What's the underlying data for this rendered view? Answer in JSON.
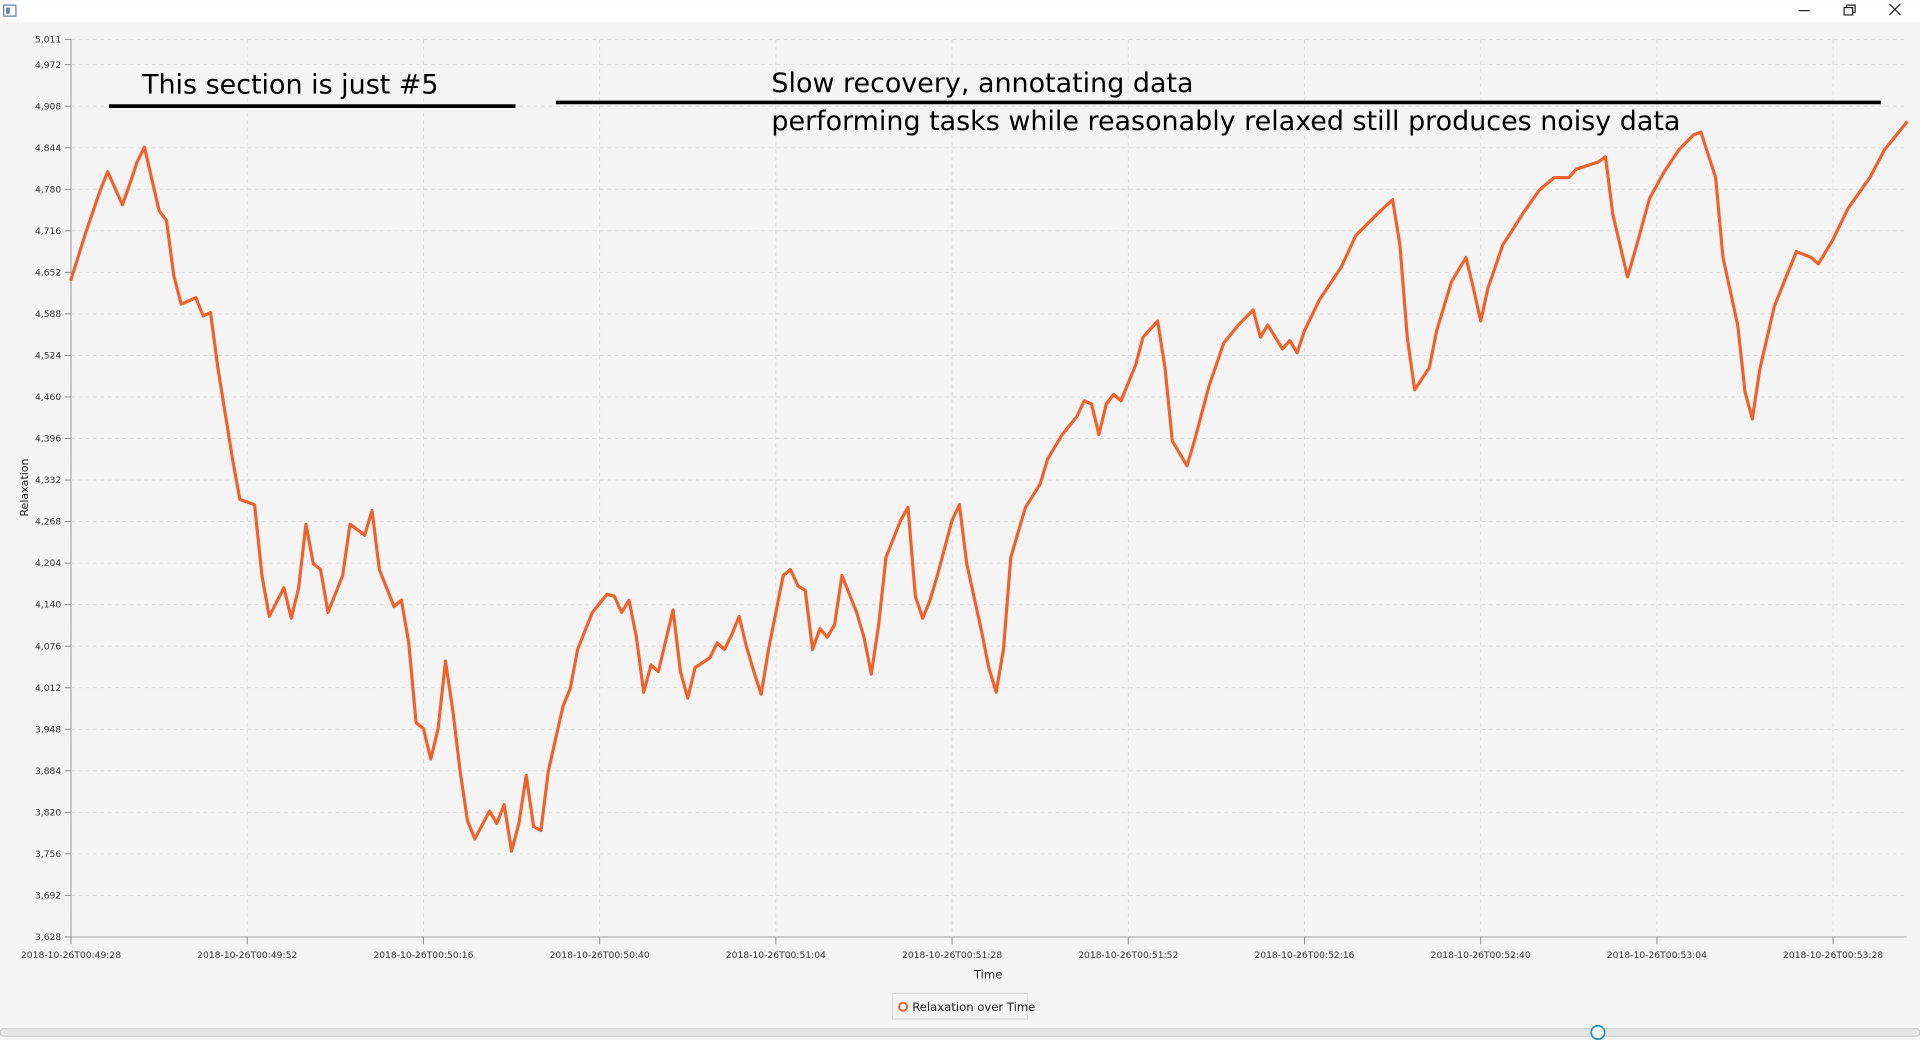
{
  "chart_data": {
    "type": "line",
    "x_label": "Time",
    "y_label": "Relaxation",
    "annotations": [
      "This section is just #5",
      "Slow recovery, annotating data",
      "performing tasks while reasonably relaxed still produces noisy data"
    ],
    "grid": true,
    "xlim": [
      "2018-10-26T00:49:28",
      "2018-10-26T00:53:38"
    ],
    "xticks": [
      "2018-10-26T00:49:28",
      "2018-10-26T00:49:52",
      "2018-10-26T00:50:16",
      "2018-10-26T00:50:40",
      "2018-10-26T00:51:04",
      "2018-10-26T00:51:28",
      "2018-10-26T00:51:52",
      "2018-10-26T00:52:16",
      "2018-10-26T00:52:40",
      "2018-10-26T00:53:04",
      "2018-10-26T00:53:28"
    ],
    "ylim": [
      3628,
      5011
    ],
    "yticks": [
      {
        "value": 3628,
        "label": "3,628"
      },
      {
        "value": 3692,
        "label": "3,692"
      },
      {
        "value": 3756,
        "label": "3,756"
      },
      {
        "value": 3820,
        "label": "3,820"
      },
      {
        "value": 3884,
        "label": "3,884"
      },
      {
        "value": 3948,
        "label": "3,948"
      },
      {
        "value": 4012,
        "label": "4,012"
      },
      {
        "value": 4076,
        "label": "4,076"
      },
      {
        "value": 4140,
        "label": "4,140"
      },
      {
        "value": 4204,
        "label": "4,204"
      },
      {
        "value": 4268,
        "label": "4,268"
      },
      {
        "value": 4332,
        "label": "4,332"
      },
      {
        "value": 4396,
        "label": "4,396"
      },
      {
        "value": 4460,
        "label": "4,460"
      },
      {
        "value": 4524,
        "label": "4,524"
      },
      {
        "value": 4588,
        "label": "4,588"
      },
      {
        "value": 4652,
        "label": "4,652"
      },
      {
        "value": 4716,
        "label": "4,716"
      },
      {
        "value": 4780,
        "label": "4,780"
      },
      {
        "value": 4844,
        "label": "4,844"
      },
      {
        "value": 4908,
        "label": "4,908"
      },
      {
        "value": 4972,
        "label": "4,972"
      },
      {
        "value": 5011,
        "label": "5,011"
      }
    ],
    "x": [
      "2018-10-26T00:49:28",
      "2018-10-26T00:49:30",
      "2018-10-26T00:49:32",
      "2018-10-26T00:49:33",
      "2018-10-26T00:49:35",
      "2018-10-26T00:49:36",
      "2018-10-26T00:49:37",
      "2018-10-26T00:49:38",
      "2018-10-26T00:49:40",
      "2018-10-26T00:49:41",
      "2018-10-26T00:49:42",
      "2018-10-26T00:49:43",
      "2018-10-26T00:49:45",
      "2018-10-26T00:49:46",
      "2018-10-26T00:49:47",
      "2018-10-26T00:49:48",
      "2018-10-26T00:49:50",
      "2018-10-26T00:49:51",
      "2018-10-26T00:49:53",
      "2018-10-26T00:49:54",
      "2018-10-26T00:49:55",
      "2018-10-26T00:49:57",
      "2018-10-26T00:49:58",
      "2018-10-26T00:49:59",
      "2018-10-26T00:50:00",
      "2018-10-26T00:50:01",
      "2018-10-26T00:50:02",
      "2018-10-26T00:50:03",
      "2018-10-26T00:50:05",
      "2018-10-26T00:50:06",
      "2018-10-26T00:50:08",
      "2018-10-26T00:50:09",
      "2018-10-26T00:50:10",
      "2018-10-26T00:50:12",
      "2018-10-26T00:50:13",
      "2018-10-26T00:50:14",
      "2018-10-26T00:50:15",
      "2018-10-26T00:50:16",
      "2018-10-26T00:50:17",
      "2018-10-26T00:50:18",
      "2018-10-26T00:50:19",
      "2018-10-26T00:50:20",
      "2018-10-26T00:50:21",
      "2018-10-26T00:50:22",
      "2018-10-26T00:50:23",
      "2018-10-26T00:50:25",
      "2018-10-26T00:50:26",
      "2018-10-26T00:50:27",
      "2018-10-26T00:50:28",
      "2018-10-26T00:50:29",
      "2018-10-26T00:50:30",
      "2018-10-26T00:50:31",
      "2018-10-26T00:50:32",
      "2018-10-26T00:50:33",
      "2018-10-26T00:50:35",
      "2018-10-26T00:50:36",
      "2018-10-26T00:50:37",
      "2018-10-26T00:50:39",
      "2018-10-26T00:50:41",
      "2018-10-26T00:50:42",
      "2018-10-26T00:50:43",
      "2018-10-26T00:50:44",
      "2018-10-26T00:50:45",
      "2018-10-26T00:50:46",
      "2018-10-26T00:50:47",
      "2018-10-26T00:50:48",
      "2018-10-26T00:50:50",
      "2018-10-26T00:50:51",
      "2018-10-26T00:50:52",
      "2018-10-26T00:50:53",
      "2018-10-26T00:50:55",
      "2018-10-26T00:50:56",
      "2018-10-26T00:50:57",
      "2018-10-26T00:50:58",
      "2018-10-26T00:50:59",
      "2018-10-26T00:51:00",
      "2018-10-26T00:51:01",
      "2018-10-26T00:51:02",
      "2018-10-26T00:51:03",
      "2018-10-26T00:51:05",
      "2018-10-26T00:51:06",
      "2018-10-26T00:51:07",
      "2018-10-26T00:51:08",
      "2018-10-26T00:51:09",
      "2018-10-26T00:51:10",
      "2018-10-26T00:51:11",
      "2018-10-26T00:51:12",
      "2018-10-26T00:51:13",
      "2018-10-26T00:51:15",
      "2018-10-26T00:51:16",
      "2018-10-26T00:51:17",
      "2018-10-26T00:51:18",
      "2018-10-26T00:51:19",
      "2018-10-26T00:51:21",
      "2018-10-26T00:51:22",
      "2018-10-26T00:51:23",
      "2018-10-26T00:51:24",
      "2018-10-26T00:51:25",
      "2018-10-26T00:51:26",
      "2018-10-26T00:51:28",
      "2018-10-26T00:51:29",
      "2018-10-26T00:51:30",
      "2018-10-26T00:51:32",
      "2018-10-26T00:51:33",
      "2018-10-26T00:51:34",
      "2018-10-26T00:51:35",
      "2018-10-26T00:51:36",
      "2018-10-26T00:51:38",
      "2018-10-26T00:51:40",
      "2018-10-26T00:51:41",
      "2018-10-26T00:51:43",
      "2018-10-26T00:51:45",
      "2018-10-26T00:51:46",
      "2018-10-26T00:51:47",
      "2018-10-26T00:51:48",
      "2018-10-26T00:51:49",
      "2018-10-26T00:51:50",
      "2018-10-26T00:51:51",
      "2018-10-26T00:51:53",
      "2018-10-26T00:51:54",
      "2018-10-26T00:51:56",
      "2018-10-26T00:51:57",
      "2018-10-26T00:51:58",
      "2018-10-26T00:52:00",
      "2018-10-26T00:52:01",
      "2018-10-26T00:52:03",
      "2018-10-26T00:52:05",
      "2018-10-26T00:52:07",
      "2018-10-26T00:52:09",
      "2018-10-26T00:52:10",
      "2018-10-26T00:52:11",
      "2018-10-26T00:52:13",
      "2018-10-26T00:52:14",
      "2018-10-26T00:52:15",
      "2018-10-26T00:52:16",
      "2018-10-26T00:52:18",
      "2018-10-26T00:52:21",
      "2018-10-26T00:52:23",
      "2018-10-26T00:52:26",
      "2018-10-26T00:52:28",
      "2018-10-26T00:52:29",
      "2018-10-26T00:52:30",
      "2018-10-26T00:52:31",
      "2018-10-26T00:52:33",
      "2018-10-26T00:52:34",
      "2018-10-26T00:52:36",
      "2018-10-26T00:52:38",
      "2018-10-26T00:52:39",
      "2018-10-26T00:52:40",
      "2018-10-26T00:52:41",
      "2018-10-26T00:52:43",
      "2018-10-26T00:52:46",
      "2018-10-26T00:52:48",
      "2018-10-26T00:52:50",
      "2018-10-26T00:52:52",
      "2018-10-26T00:52:53",
      "2018-10-26T00:52:56",
      "2018-10-26T00:52:57",
      "2018-10-26T00:52:58",
      "2018-10-26T00:53:00",
      "2018-10-26T00:53:01",
      "2018-10-26T00:53:03",
      "2018-10-26T00:53:05",
      "2018-10-26T00:53:07",
      "2018-10-26T00:53:09",
      "2018-10-26T00:53:10",
      "2018-10-26T00:53:12",
      "2018-10-26T00:53:13",
      "2018-10-26T00:53:15",
      "2018-10-26T00:53:16",
      "2018-10-26T00:53:17",
      "2018-10-26T00:53:18",
      "2018-10-26T00:53:20",
      "2018-10-26T00:53:22",
      "2018-10-26T00:53:23",
      "2018-10-26T00:53:25",
      "2018-10-26T00:53:26",
      "2018-10-26T00:53:28",
      "2018-10-26T00:53:30",
      "2018-10-26T00:53:33",
      "2018-10-26T00:53:35",
      "2018-10-26T00:53:38"
    ],
    "series": [
      {
        "name": "Relaxation over Time",
        "color": "#f0622c",
        "values": [
          4641,
          4713,
          4779,
          4807,
          4756,
          4788,
          4822,
          4845,
          4747,
          4732,
          4647,
          4603,
          4613,
          4585,
          4590,
          4505,
          4364,
          4302,
          4294,
          4185,
          4122,
          4166,
          4119,
          4166,
          4264,
          4203,
          4194,
          4128,
          4185,
          4264,
          4247,
          4285,
          4194,
          4137,
          4147,
          4081,
          3958,
          3949,
          3902,
          3949,
          4053,
          3977,
          3883,
          3807,
          3779,
          3822,
          3803,
          3832,
          3760,
          3803,
          3877,
          3798,
          3792,
          3883,
          3983,
          4011,
          4071,
          4128,
          4156,
          4153,
          4128,
          4147,
          4090,
          4005,
          4047,
          4037,
          4132,
          4037,
          3996,
          4043,
          4058,
          4081,
          4071,
          4094,
          4122,
          4075,
          4037,
          4002,
          4071,
          4185,
          4194,
          4169,
          4162,
          4071,
          4103,
          4090,
          4109,
          4185,
          4128,
          4090,
          4033,
          4109,
          4213,
          4270,
          4290,
          4153,
          4119,
          4147,
          4185,
          4270,
          4294,
          4203,
          4100,
          4043,
          4005,
          4071,
          4213,
          4290,
          4326,
          4364,
          4402,
          4430,
          4454,
          4449,
          4402,
          4449,
          4464,
          4454,
          4509,
          4552,
          4577,
          4505,
          4392,
          4354,
          4392,
          4477,
          4543,
          4571,
          4594,
          4552,
          4571,
          4534,
          4547,
          4528,
          4562,
          4609,
          4660,
          4709,
          4743,
          4764,
          4694,
          4552,
          4471,
          4505,
          4562,
          4637,
          4675,
          4628,
          4577,
          4628,
          4694,
          4747,
          4779,
          4798,
          4798,
          4811,
          4822,
          4830,
          4741,
          4645,
          4684,
          4766,
          4807,
          4841,
          4864,
          4868,
          4798,
          4675,
          4571,
          4468,
          4426,
          4502,
          4600,
          4656,
          4684,
          4675,
          4665,
          4703,
          4750,
          4798,
          4841,
          4883
        ]
      }
    ]
  }
}
